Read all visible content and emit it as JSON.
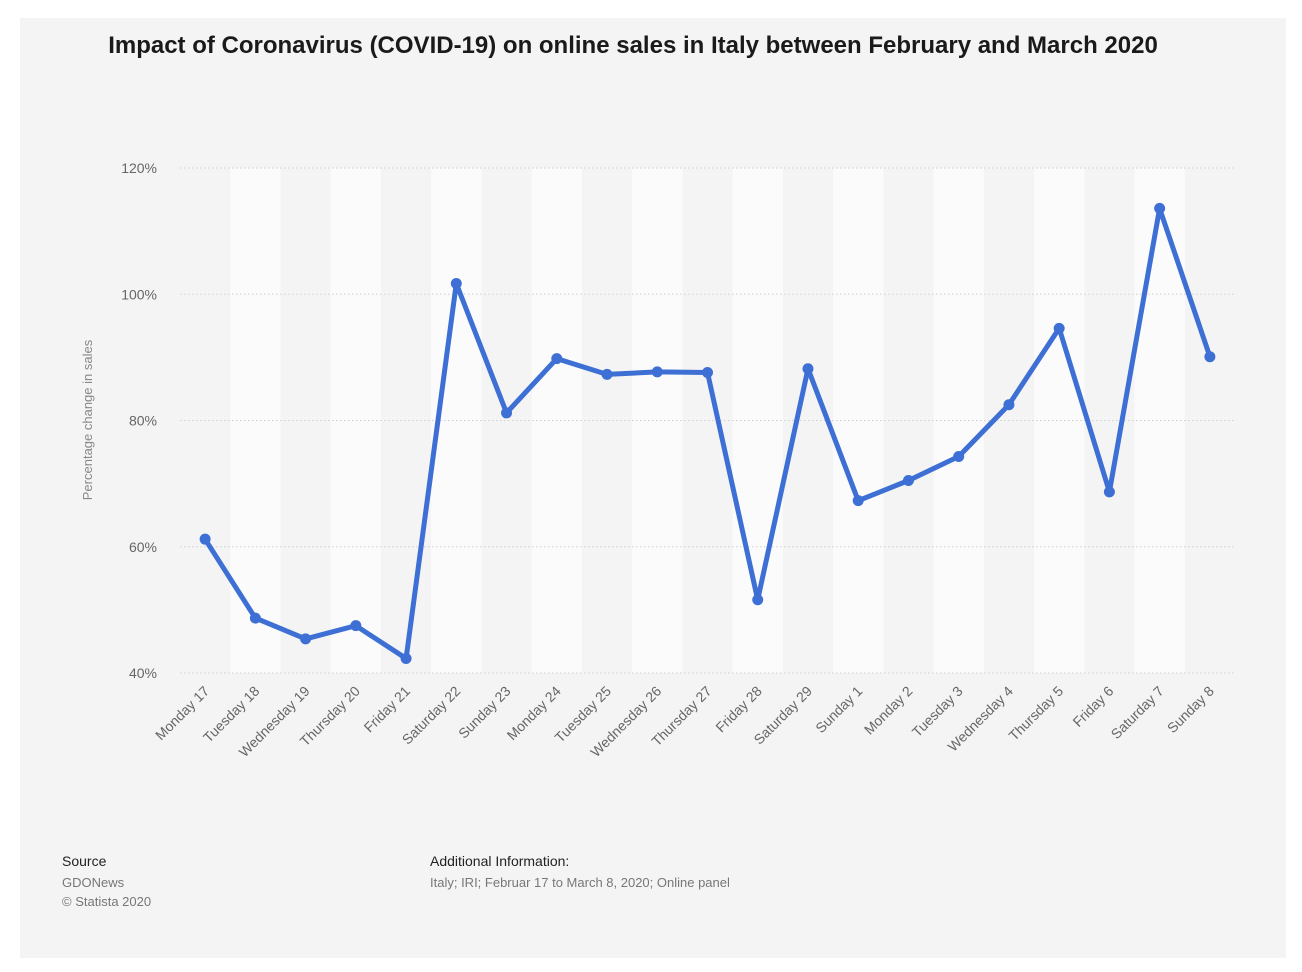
{
  "chart_data": {
    "type": "line",
    "title": "Impact of Coronavirus (COVID-19) on online sales in Italy between February and March 2020",
    "ylabel": "Percentage change in sales",
    "xlabel": "",
    "ylim": [
      40,
      120
    ],
    "yticks": [
      40,
      60,
      80,
      100,
      120
    ],
    "ytick_labels": [
      "40%",
      "60%",
      "80%",
      "100%",
      "120%"
    ],
    "grid": "horizontal dotted",
    "categories": [
      "Monday 17",
      "Tuesday 18",
      "Wednesday 19",
      "Thursday 20",
      "Friday 21",
      "Saturday 22",
      "Sunday 23",
      "Monday 24",
      "Tuesday 25",
      "Wednesday 26",
      "Thursday 27",
      "Friday 28",
      "Saturday 29",
      "Sunday 1",
      "Monday 2",
      "Tuesday 3",
      "Wednesday 4",
      "Thursday 5",
      "Friday 6",
      "Saturday 7",
      "Sunday 8"
    ],
    "values": [
      61.2,
      48.7,
      45.4,
      47.5,
      42.3,
      101.7,
      81.2,
      89.8,
      87.3,
      87.7,
      87.6,
      51.6,
      88.2,
      67.3,
      70.5,
      74.3,
      82.5,
      94.6,
      68.7,
      113.6,
      90.1
    ],
    "line_color": "#3d6fd4"
  },
  "footer": {
    "source_label": "Source",
    "source_name": "GDONews",
    "copyright": "© Statista 2020",
    "info_label": "Additional Information:",
    "info_text": "Italy; IRI; Februar 17 to March 8, 2020; Online panel"
  }
}
